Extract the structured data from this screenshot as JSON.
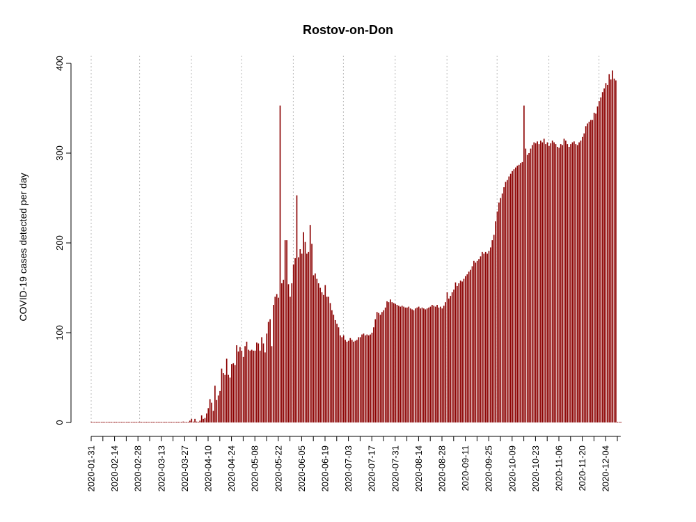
{
  "chart_data": {
    "type": "bar",
    "title": "Rostov-on-Don",
    "xlabel": "",
    "ylabel": "COVID-19 cases detected per day",
    "ylim": [
      0,
      400
    ],
    "y_ticks": [
      0,
      100,
      200,
      300,
      400
    ],
    "x_start": "2020-01-31",
    "x_end": "2020-12-13",
    "x_tick_labels": [
      "2020-01-31",
      "2020-02-14",
      "2020-02-28",
      "2020-03-13",
      "2020-03-27",
      "2020-04-10",
      "2020-04-24",
      "2020-05-08",
      "2020-05-22",
      "2020-06-05",
      "2020-06-19",
      "2020-07-03",
      "2020-07-17",
      "2020-07-31",
      "2020-08-14",
      "2020-08-28",
      "2020-09-11",
      "2020-09-25",
      "2020-10-09",
      "2020-10-23",
      "2020-11-06",
      "2020-11-20",
      "2020-12-04"
    ],
    "vertical_gridlines": [
      "2020-01-31",
      "2020-02-29",
      "2020-03-31",
      "2020-04-30",
      "2020-05-31",
      "2020-06-30",
      "2020-07-31",
      "2020-08-31",
      "2020-09-30",
      "2020-10-31",
      "2020-11-30"
    ],
    "grid": "vertical dotted",
    "bar_color": "#8b0000",
    "series": [
      {
        "points": [
          [
            "2020-01-31",
            0
          ],
          [
            "2020-03-26",
            1
          ],
          [
            "2020-03-30",
            2
          ],
          [
            "2020-03-31",
            4
          ],
          [
            "2020-04-01",
            1
          ],
          [
            "2020-04-02",
            4
          ],
          [
            "2020-04-03",
            1
          ],
          [
            "2020-04-05",
            2
          ],
          [
            "2020-04-06",
            8
          ],
          [
            "2020-04-07",
            4
          ],
          [
            "2020-04-08",
            5
          ],
          [
            "2020-04-09",
            10
          ],
          [
            "2020-04-10",
            16
          ],
          [
            "2020-04-11",
            26
          ],
          [
            "2020-04-12",
            22
          ],
          [
            "2020-04-13",
            13
          ],
          [
            "2020-04-14",
            41
          ],
          [
            "2020-04-15",
            25
          ],
          [
            "2020-04-16",
            30
          ],
          [
            "2020-04-17",
            35
          ],
          [
            "2020-04-18",
            60
          ],
          [
            "2020-04-19",
            55
          ],
          [
            "2020-04-20",
            53
          ],
          [
            "2020-04-21",
            71
          ],
          [
            "2020-04-22",
            53
          ],
          [
            "2020-04-23",
            50
          ],
          [
            "2020-04-24",
            65
          ],
          [
            "2020-04-25",
            66
          ],
          [
            "2020-04-26",
            64
          ],
          [
            "2020-04-27",
            86
          ],
          [
            "2020-04-28",
            79
          ],
          [
            "2020-04-29",
            84
          ],
          [
            "2020-04-30",
            80
          ],
          [
            "2020-05-01",
            73
          ],
          [
            "2020-05-02",
            85
          ],
          [
            "2020-05-03",
            90
          ],
          [
            "2020-05-04",
            81
          ],
          [
            "2020-05-05",
            80
          ],
          [
            "2020-05-06",
            81
          ],
          [
            "2020-05-07",
            80
          ],
          [
            "2020-05-08",
            80
          ],
          [
            "2020-05-09",
            89
          ],
          [
            "2020-05-10",
            88
          ],
          [
            "2020-05-11",
            80
          ],
          [
            "2020-05-12",
            95
          ],
          [
            "2020-05-13",
            88
          ],
          [
            "2020-05-14",
            78
          ],
          [
            "2020-05-15",
            99
          ],
          [
            "2020-05-16",
            112
          ],
          [
            "2020-05-17",
            115
          ],
          [
            "2020-05-18",
            85
          ],
          [
            "2020-05-19",
            131
          ],
          [
            "2020-05-20",
            140
          ],
          [
            "2020-05-21",
            143
          ],
          [
            "2020-05-22",
            139
          ],
          [
            "2020-05-23",
            353
          ],
          [
            "2020-05-24",
            155
          ],
          [
            "2020-05-25",
            159
          ],
          [
            "2020-05-26",
            203
          ],
          [
            "2020-05-27",
            203
          ],
          [
            "2020-05-28",
            154
          ],
          [
            "2020-05-29",
            140
          ],
          [
            "2020-05-30",
            155
          ],
          [
            "2020-05-31",
            176
          ],
          [
            "2020-06-01",
            183
          ],
          [
            "2020-06-02",
            253
          ],
          [
            "2020-06-03",
            184
          ],
          [
            "2020-06-04",
            193
          ],
          [
            "2020-06-05",
            188
          ],
          [
            "2020-06-06",
            212
          ],
          [
            "2020-06-07",
            201
          ],
          [
            "2020-06-08",
            188
          ],
          [
            "2020-06-09",
            190
          ],
          [
            "2020-06-10",
            220
          ],
          [
            "2020-06-11",
            199
          ],
          [
            "2020-06-12",
            164
          ],
          [
            "2020-06-13",
            166
          ],
          [
            "2020-06-14",
            160
          ],
          [
            "2020-06-15",
            155
          ],
          [
            "2020-06-16",
            150
          ],
          [
            "2020-06-17",
            145
          ],
          [
            "2020-06-18",
            142
          ],
          [
            "2020-06-19",
            153
          ],
          [
            "2020-06-20",
            140
          ],
          [
            "2020-06-21",
            140
          ],
          [
            "2020-06-22",
            133
          ],
          [
            "2020-06-23",
            125
          ],
          [
            "2020-06-24",
            120
          ],
          [
            "2020-06-25",
            114
          ],
          [
            "2020-06-26",
            110
          ],
          [
            "2020-06-27",
            106
          ],
          [
            "2020-06-28",
            97
          ],
          [
            "2020-06-29",
            95
          ],
          [
            "2020-06-30",
            97
          ],
          [
            "2020-07-01",
            92
          ],
          [
            "2020-07-02",
            90
          ],
          [
            "2020-07-03",
            91
          ],
          [
            "2020-07-04",
            94
          ],
          [
            "2020-07-05",
            92
          ],
          [
            "2020-07-06",
            90
          ],
          [
            "2020-07-07",
            91
          ],
          [
            "2020-07-08",
            92
          ],
          [
            "2020-07-09",
            95
          ],
          [
            "2020-07-10",
            95
          ],
          [
            "2020-07-11",
            98
          ],
          [
            "2020-07-12",
            99
          ],
          [
            "2020-07-13",
            97
          ],
          [
            "2020-07-14",
            98
          ],
          [
            "2020-07-15",
            97
          ],
          [
            "2020-07-16",
            98
          ],
          [
            "2020-07-17",
            100
          ],
          [
            "2020-07-18",
            106
          ],
          [
            "2020-07-19",
            115
          ],
          [
            "2020-07-20",
            123
          ],
          [
            "2020-07-21",
            122
          ],
          [
            "2020-07-22",
            120
          ],
          [
            "2020-07-23",
            123
          ],
          [
            "2020-07-24",
            125
          ],
          [
            "2020-07-25",
            128
          ],
          [
            "2020-07-26",
            135
          ],
          [
            "2020-07-27",
            134
          ],
          [
            "2020-07-28",
            137
          ],
          [
            "2020-07-29",
            134
          ],
          [
            "2020-07-30",
            133
          ],
          [
            "2020-07-31",
            132
          ],
          [
            "2020-08-01",
            131
          ],
          [
            "2020-08-02",
            130
          ],
          [
            "2020-08-03",
            129
          ],
          [
            "2020-08-04",
            130
          ],
          [
            "2020-08-05",
            129
          ],
          [
            "2020-08-06",
            128
          ],
          [
            "2020-08-07",
            128
          ],
          [
            "2020-08-08",
            129
          ],
          [
            "2020-08-09",
            127
          ],
          [
            "2020-08-10",
            126
          ],
          [
            "2020-08-11",
            125
          ],
          [
            "2020-08-12",
            127
          ],
          [
            "2020-08-13",
            128
          ],
          [
            "2020-08-14",
            129
          ],
          [
            "2020-08-15",
            127
          ],
          [
            "2020-08-16",
            128
          ],
          [
            "2020-08-17",
            127
          ],
          [
            "2020-08-18",
            126
          ],
          [
            "2020-08-19",
            127
          ],
          [
            "2020-08-20",
            128
          ],
          [
            "2020-08-21",
            129
          ],
          [
            "2020-08-22",
            131
          ],
          [
            "2020-08-23",
            130
          ],
          [
            "2020-08-24",
            129
          ],
          [
            "2020-08-25",
            131
          ],
          [
            "2020-08-26",
            128
          ],
          [
            "2020-08-27",
            129
          ],
          [
            "2020-08-28",
            127
          ],
          [
            "2020-08-29",
            130
          ],
          [
            "2020-08-30",
            134
          ],
          [
            "2020-08-31",
            145
          ],
          [
            "2020-09-01",
            138
          ],
          [
            "2020-09-02",
            141
          ],
          [
            "2020-09-03",
            145
          ],
          [
            "2020-09-04",
            148
          ],
          [
            "2020-09-05",
            156
          ],
          [
            "2020-09-06",
            152
          ],
          [
            "2020-09-07",
            155
          ],
          [
            "2020-09-08",
            158
          ],
          [
            "2020-09-09",
            157
          ],
          [
            "2020-09-10",
            160
          ],
          [
            "2020-09-11",
            163
          ],
          [
            "2020-09-12",
            165
          ],
          [
            "2020-09-13",
            168
          ],
          [
            "2020-09-14",
            170
          ],
          [
            "2020-09-15",
            174
          ],
          [
            "2020-09-16",
            180
          ],
          [
            "2020-09-17",
            178
          ],
          [
            "2020-09-18",
            180
          ],
          [
            "2020-09-19",
            182
          ],
          [
            "2020-09-20",
            185
          ],
          [
            "2020-09-21",
            190
          ],
          [
            "2020-09-22",
            188
          ],
          [
            "2020-09-23",
            190
          ],
          [
            "2020-09-24",
            188
          ],
          [
            "2020-09-25",
            191
          ],
          [
            "2020-09-26",
            195
          ],
          [
            "2020-09-27",
            203
          ],
          [
            "2020-09-28",
            209
          ],
          [
            "2020-09-29",
            224
          ],
          [
            "2020-09-30",
            235
          ],
          [
            "2020-10-01",
            245
          ],
          [
            "2020-10-02",
            250
          ],
          [
            "2020-10-03",
            255
          ],
          [
            "2020-10-04",
            262
          ],
          [
            "2020-10-05",
            268
          ],
          [
            "2020-10-06",
            270
          ],
          [
            "2020-10-07",
            274
          ],
          [
            "2020-10-08",
            277
          ],
          [
            "2020-10-09",
            280
          ],
          [
            "2020-10-10",
            282
          ],
          [
            "2020-10-11",
            284
          ],
          [
            "2020-10-12",
            286
          ],
          [
            "2020-10-13",
            287
          ],
          [
            "2020-10-14",
            289
          ],
          [
            "2020-10-15",
            290
          ],
          [
            "2020-10-16",
            353
          ],
          [
            "2020-10-17",
            305
          ],
          [
            "2020-10-18",
            298
          ],
          [
            "2020-10-19",
            300
          ],
          [
            "2020-10-20",
            305
          ],
          [
            "2020-10-21",
            309
          ],
          [
            "2020-10-22",
            312
          ],
          [
            "2020-10-23",
            311
          ],
          [
            "2020-10-24",
            313
          ],
          [
            "2020-10-25",
            310
          ],
          [
            "2020-10-26",
            314
          ],
          [
            "2020-10-27",
            312
          ],
          [
            "2020-10-28",
            316
          ],
          [
            "2020-10-29",
            310
          ],
          [
            "2020-10-30",
            312
          ],
          [
            "2020-10-31",
            308
          ],
          [
            "2020-11-01",
            311
          ],
          [
            "2020-11-02",
            314
          ],
          [
            "2020-11-03",
            312
          ],
          [
            "2020-11-04",
            310
          ],
          [
            "2020-11-05",
            307
          ],
          [
            "2020-11-06",
            306
          ],
          [
            "2020-11-07",
            310
          ],
          [
            "2020-11-08",
            309
          ],
          [
            "2020-11-09",
            316
          ],
          [
            "2020-11-10",
            314
          ],
          [
            "2020-11-11",
            310
          ],
          [
            "2020-11-12",
            307
          ],
          [
            "2020-11-13",
            310
          ],
          [
            "2020-11-14",
            312
          ],
          [
            "2020-11-15",
            313
          ],
          [
            "2020-11-16",
            310
          ],
          [
            "2020-11-17",
            309
          ],
          [
            "2020-11-18",
            312
          ],
          [
            "2020-11-19",
            314
          ],
          [
            "2020-11-20",
            318
          ],
          [
            "2020-11-21",
            322
          ],
          [
            "2020-11-22",
            330
          ],
          [
            "2020-11-23",
            333
          ],
          [
            "2020-11-24",
            335
          ],
          [
            "2020-11-25",
            337
          ],
          [
            "2020-11-26",
            337
          ],
          [
            "2020-11-27",
            345
          ],
          [
            "2020-11-28",
            344
          ],
          [
            "2020-11-29",
            352
          ],
          [
            "2020-11-30",
            358
          ],
          [
            "2020-12-01",
            362
          ],
          [
            "2020-12-02",
            368
          ],
          [
            "2020-12-03",
            372
          ],
          [
            "2020-12-04",
            378
          ],
          [
            "2020-12-05",
            376
          ],
          [
            "2020-12-06",
            388
          ],
          [
            "2020-12-07",
            382
          ],
          [
            "2020-12-08",
            392
          ],
          [
            "2020-12-09",
            383
          ],
          [
            "2020-12-10",
            381
          ]
        ]
      }
    ]
  }
}
